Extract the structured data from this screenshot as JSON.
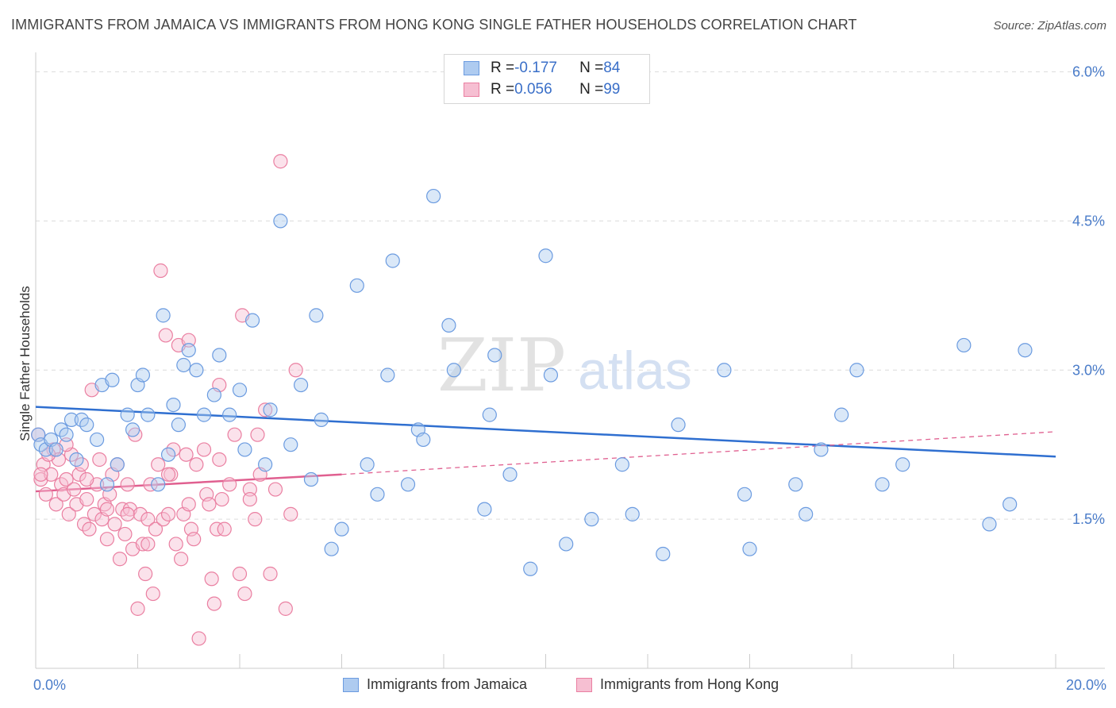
{
  "title": "IMMIGRANTS FROM JAMAICA VS IMMIGRANTS FROM HONG KONG SINGLE FATHER HOUSEHOLDS CORRELATION CHART",
  "source": "Source: ZipAtlas.com",
  "watermark": {
    "zip": "ZIP",
    "atlas": "atlas"
  },
  "colors": {
    "blue": "#6b9be0",
    "blue_fill": "#aecbf0",
    "blue_line": "#2f6fd0",
    "pink": "#ea7fa1",
    "pink_fill": "#f6bfd2",
    "pink_line": "#e06090",
    "tick_blue": "#4a7cc9"
  },
  "legend": {
    "rows": [
      {
        "r_label": "R = ",
        "r_value": "-0.177",
        "n_label": "N = ",
        "n_value": "84"
      },
      {
        "r_label": "R = ",
        "r_value": "0.056",
        "n_label": "N = ",
        "n_value": "99"
      }
    ]
  },
  "bottom_legend": {
    "jamaica": "Immigrants from Jamaica",
    "hongkong": "Immigrants from Hong Kong"
  },
  "chart_data": {
    "type": "scatter",
    "title": "IMMIGRANTS FROM JAMAICA VS IMMIGRANTS FROM HONG KONG SINGLE FATHER HOUSEHOLDS CORRELATION CHART",
    "xlabel": "",
    "ylabel": "Single Father Households",
    "xlim": [
      0,
      20
    ],
    "ylim": [
      0.0,
      6.1
    ],
    "x_tick_labels": [
      "0.0%",
      "20.0%"
    ],
    "y_ticks": [
      1.5,
      3.0,
      4.5,
      6.0
    ],
    "y_tick_labels": [
      "1.5%",
      "3.0%",
      "4.5%",
      "6.0%"
    ],
    "grid": true,
    "legend_position": "top-center",
    "series": [
      {
        "name": "Immigrants from Jamaica",
        "color": "#6b9be0",
        "trend": {
          "x": [
            0,
            20
          ],
          "y": [
            2.63,
            2.13
          ]
        },
        "points": [
          [
            0.05,
            2.35
          ],
          [
            0.1,
            2.25
          ],
          [
            0.2,
            2.2
          ],
          [
            0.3,
            2.3
          ],
          [
            0.5,
            2.4
          ],
          [
            0.6,
            2.35
          ],
          [
            0.7,
            2.5
          ],
          [
            0.8,
            2.1
          ],
          [
            0.9,
            2.5
          ],
          [
            1.0,
            2.45
          ],
          [
            1.2,
            2.3
          ],
          [
            1.3,
            2.85
          ],
          [
            1.4,
            1.85
          ],
          [
            1.5,
            2.9
          ],
          [
            1.6,
            2.05
          ],
          [
            1.8,
            2.55
          ],
          [
            1.9,
            2.4
          ],
          [
            2.0,
            2.85
          ],
          [
            2.1,
            2.95
          ],
          [
            2.2,
            2.55
          ],
          [
            2.4,
            1.85
          ],
          [
            2.5,
            3.55
          ],
          [
            2.6,
            2.15
          ],
          [
            2.7,
            2.65
          ],
          [
            2.8,
            2.45
          ],
          [
            2.9,
            3.05
          ],
          [
            3.0,
            3.2
          ],
          [
            3.15,
            3.0
          ],
          [
            3.3,
            2.55
          ],
          [
            3.5,
            2.75
          ],
          [
            3.6,
            3.15
          ],
          [
            3.8,
            2.55
          ],
          [
            4.0,
            2.8
          ],
          [
            4.1,
            2.2
          ],
          [
            4.25,
            3.5
          ],
          [
            4.5,
            2.05
          ],
          [
            4.6,
            2.6
          ],
          [
            4.8,
            4.5
          ],
          [
            5.0,
            2.25
          ],
          [
            5.2,
            2.85
          ],
          [
            5.4,
            1.9
          ],
          [
            5.5,
            3.55
          ],
          [
            5.6,
            2.5
          ],
          [
            5.8,
            1.2
          ],
          [
            6.0,
            1.4
          ],
          [
            6.3,
            3.85
          ],
          [
            6.5,
            2.05
          ],
          [
            6.7,
            1.75
          ],
          [
            6.9,
            2.95
          ],
          [
            7.0,
            4.1
          ],
          [
            7.3,
            1.85
          ],
          [
            7.5,
            2.4
          ],
          [
            7.6,
            2.3
          ],
          [
            7.8,
            4.75
          ],
          [
            8.1,
            3.45
          ],
          [
            8.2,
            3.0
          ],
          [
            8.8,
            1.6
          ],
          [
            8.9,
            2.55
          ],
          [
            9.0,
            3.15
          ],
          [
            9.3,
            1.95
          ],
          [
            9.7,
            1.0
          ],
          [
            10.0,
            4.15
          ],
          [
            10.1,
            2.95
          ],
          [
            10.4,
            1.25
          ],
          [
            10.9,
            1.5
          ],
          [
            11.5,
            2.05
          ],
          [
            11.7,
            1.55
          ],
          [
            12.3,
            1.15
          ],
          [
            12.6,
            2.45
          ],
          [
            13.5,
            3.0
          ],
          [
            13.9,
            1.75
          ],
          [
            14.0,
            1.2
          ],
          [
            14.9,
            1.85
          ],
          [
            15.1,
            1.55
          ],
          [
            15.4,
            2.2
          ],
          [
            15.8,
            2.55
          ],
          [
            16.1,
            3.0
          ],
          [
            16.6,
            1.85
          ],
          [
            17.0,
            2.05
          ],
          [
            18.2,
            3.25
          ],
          [
            18.7,
            1.45
          ],
          [
            19.1,
            1.65
          ],
          [
            19.4,
            3.2
          ],
          [
            0.4,
            2.2
          ]
        ]
      },
      {
        "name": "Immigrants from Hong Kong",
        "color": "#ea7fa1",
        "trend": {
          "x": [
            0,
            6
          ],
          "y": [
            1.78,
            1.95
          ]
        },
        "trend_extended": {
          "x": [
            6,
            20
          ],
          "y": [
            1.95,
            2.38
          ]
        },
        "points": [
          [
            0.05,
            2.35
          ],
          [
            0.1,
            1.9
          ],
          [
            0.15,
            2.05
          ],
          [
            0.2,
            1.75
          ],
          [
            0.3,
            1.95
          ],
          [
            0.35,
            2.2
          ],
          [
            0.4,
            1.65
          ],
          [
            0.45,
            2.1
          ],
          [
            0.5,
            1.85
          ],
          [
            0.55,
            1.75
          ],
          [
            0.6,
            1.9
          ],
          [
            0.65,
            1.55
          ],
          [
            0.7,
            2.15
          ],
          [
            0.75,
            1.8
          ],
          [
            0.8,
            1.65
          ],
          [
            0.85,
            1.95
          ],
          [
            0.9,
            2.05
          ],
          [
            0.95,
            1.45
          ],
          [
            1.0,
            1.7
          ],
          [
            1.05,
            1.4
          ],
          [
            1.1,
            2.8
          ],
          [
            1.15,
            1.55
          ],
          [
            1.2,
            1.85
          ],
          [
            1.25,
            2.1
          ],
          [
            1.3,
            1.5
          ],
          [
            1.35,
            1.65
          ],
          [
            1.4,
            1.3
          ],
          [
            1.45,
            1.75
          ],
          [
            1.5,
            1.95
          ],
          [
            1.55,
            1.45
          ],
          [
            1.6,
            2.05
          ],
          [
            1.65,
            1.1
          ],
          [
            1.7,
            1.6
          ],
          [
            1.75,
            1.35
          ],
          [
            1.8,
            1.85
          ],
          [
            1.85,
            1.6
          ],
          [
            1.9,
            1.2
          ],
          [
            1.95,
            2.35
          ],
          [
            2.0,
            0.6
          ],
          [
            2.05,
            1.55
          ],
          [
            2.1,
            1.25
          ],
          [
            2.15,
            0.95
          ],
          [
            2.2,
            1.5
          ],
          [
            2.25,
            1.85
          ],
          [
            2.3,
            0.75
          ],
          [
            2.35,
            1.4
          ],
          [
            2.4,
            2.05
          ],
          [
            2.45,
            4.0
          ],
          [
            2.5,
            1.5
          ],
          [
            2.55,
            3.35
          ],
          [
            2.6,
            1.55
          ],
          [
            2.65,
            1.95
          ],
          [
            2.7,
            2.2
          ],
          [
            2.75,
            1.25
          ],
          [
            2.8,
            3.25
          ],
          [
            2.85,
            1.1
          ],
          [
            2.9,
            1.55
          ],
          [
            2.95,
            2.15
          ],
          [
            3.0,
            3.3
          ],
          [
            3.05,
            1.4
          ],
          [
            3.1,
            1.3
          ],
          [
            3.15,
            2.05
          ],
          [
            3.2,
            0.3
          ],
          [
            3.3,
            2.2
          ],
          [
            3.35,
            1.75
          ],
          [
            3.4,
            1.65
          ],
          [
            3.45,
            0.9
          ],
          [
            3.5,
            0.65
          ],
          [
            3.55,
            1.4
          ],
          [
            3.6,
            2.85
          ],
          [
            3.65,
            1.7
          ],
          [
            3.7,
            1.4
          ],
          [
            3.8,
            1.85
          ],
          [
            3.9,
            2.35
          ],
          [
            4.0,
            0.95
          ],
          [
            4.05,
            3.55
          ],
          [
            4.1,
            0.75
          ],
          [
            4.2,
            1.8
          ],
          [
            4.3,
            1.5
          ],
          [
            4.35,
            2.35
          ],
          [
            4.4,
            1.95
          ],
          [
            4.5,
            2.6
          ],
          [
            4.6,
            0.95
          ],
          [
            4.7,
            1.8
          ],
          [
            4.8,
            5.1
          ],
          [
            4.9,
            0.6
          ],
          [
            5.0,
            1.55
          ],
          [
            5.1,
            3.0
          ],
          [
            0.25,
            2.15
          ],
          [
            0.6,
            2.25
          ],
          [
            1.0,
            1.9
          ],
          [
            1.4,
            1.6
          ],
          [
            1.8,
            1.55
          ],
          [
            2.2,
            1.25
          ],
          [
            2.6,
            1.95
          ],
          [
            3.0,
            1.65
          ],
          [
            3.6,
            2.1
          ],
          [
            4.2,
            1.7
          ],
          [
            0.1,
            1.95
          ]
        ]
      }
    ]
  }
}
